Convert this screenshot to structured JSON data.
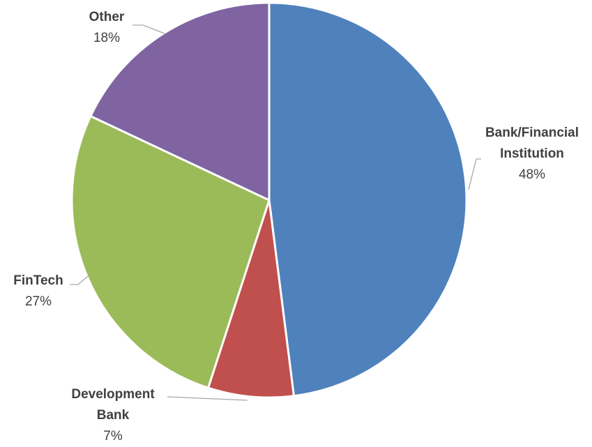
{
  "chart_data": {
    "type": "pie",
    "title": "",
    "start_angle_deg": 0,
    "direction": "clockwise",
    "slices": [
      {
        "key": "bank",
        "label_lines": [
          "Bank/Financial",
          "Institution"
        ],
        "value": 48,
        "value_label": "48%",
        "color": "#4F81BD"
      },
      {
        "key": "devbank",
        "label_lines": [
          "Development",
          "Bank"
        ],
        "value": 7,
        "value_label": "7%",
        "color": "#C0504D"
      },
      {
        "key": "fintech",
        "label_lines": [
          "FinTech"
        ],
        "value": 27,
        "value_label": "27%",
        "color": "#9BBB59"
      },
      {
        "key": "other",
        "label_lines": [
          "Other"
        ],
        "value": 18,
        "value_label": "18%",
        "color": "#8064A2"
      }
    ]
  }
}
